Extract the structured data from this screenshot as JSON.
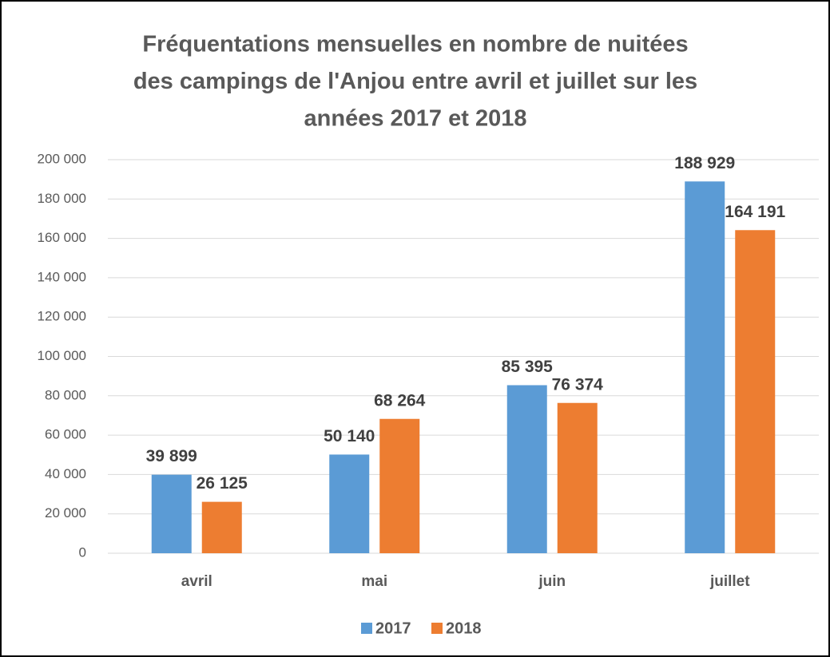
{
  "chart_data": {
    "type": "bar",
    "title": [
      "Fréquentations mensuelles en nombre de nuitées",
      "des campings de l'Anjou entre avril et juillet sur les",
      "années 2017 et 2018"
    ],
    "categories": [
      "avril",
      "mai",
      "juin",
      "juillet"
    ],
    "series": [
      {
        "name": "2017",
        "color": "#5b9bd5",
        "values": [
          39899,
          50140,
          85395,
          188929
        ],
        "value_labels": [
          "39 899",
          "50 140",
          "85 395",
          "188 929"
        ]
      },
      {
        "name": "2018",
        "color": "#ed7d31",
        "values": [
          26125,
          68264,
          76374,
          164191
        ],
        "value_labels": [
          "26 125",
          "68 264",
          "76 374",
          "164 191"
        ]
      }
    ],
    "ylim": [
      0,
      200000
    ],
    "yticks": [
      0,
      {
        "value": 20000,
        "label": "20 000"
      },
      {
        "value": 40000,
        "label": "40 000"
      },
      {
        "value": 60000,
        "label": "60 000"
      },
      {
        "value": 80000,
        "label": "80 000"
      },
      {
        "value": 100000,
        "label": "100 000"
      },
      {
        "value": 120000,
        "label": "120 000"
      },
      {
        "value": 140000,
        "label": "140 000"
      },
      {
        "value": 160000,
        "label": "160 000"
      },
      {
        "value": 180000,
        "label": "180 000"
      },
      {
        "value": 200000,
        "label": "200 000"
      }
    ],
    "grid": true,
    "legend": "bottom"
  }
}
